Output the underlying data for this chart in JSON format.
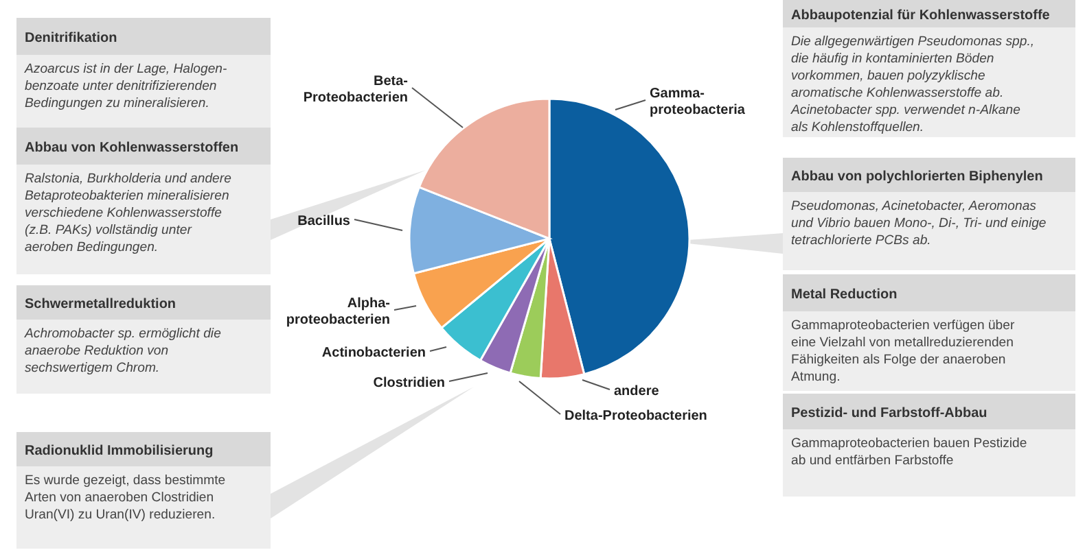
{
  "chart_data": {
    "type": "pie",
    "categories": [
      "Gamma-proteobacteria",
      "andere",
      "Delta-Proteobacterien",
      "Clostridien",
      "Actinobacterien",
      "Alpha-proteobacterien",
      "Bacillus",
      "Beta-Proteobacterien"
    ],
    "values": [
      46,
      5,
      3.5,
      3.7,
      5.8,
      7,
      10,
      19
    ],
    "colors": [
      "#0b5e9f",
      "#e8776b",
      "#9ccc5a",
      "#8e6bb4",
      "#3bbfd0",
      "#f9a24f",
      "#7fb0e0",
      "#ecae9e"
    ],
    "annotations": [
      "Denitrifikation",
      "Azoarcus ist in der Lage, Halogen-\nbenzoate unter denitrifizierenden\nBedingungen zu mineralisieren.",
      "Abbau von Kohlenwasserstoffen",
      "Ralstonia, Burkholderia und andere\nBetaproteobakterien mineralisieren\nverschiedene Kohlenwasserstoffe\n(z.B. PAKs) vollständig unter\naeroben Bedingungen.",
      "Schwermetallreduktion",
      "Achromobacter sp. ermöglicht die\nanaerobe Reduktion von\nsechswertigem Chrom.",
      "Radionuklid Immobilisierung",
      "Es wurde gezeigt, dass bestimmte\nArten von anaeroben Clostridien\nUran(VI) zu Uran(IV) reduzieren.",
      "Abbaupotenzial für Kohlenwasserstoffe",
      "Die allgegenwärtigen Pseudomonas spp.,\ndie häufig in kontaminierten Böden\nvorkommen, bauen polyzyklische\naromatische Kohlenwasserstoffe ab.\nAcinetobacter spp. verwendet n-Alkane\nals Kohlenstoffquellen.",
      "Abbau von polychlorierten Biphenylen",
      "Pseudomonas, Acinetobacter, Aeromonas\nund Vibrio bauen Mono-, Di-, Tri- und einige\ntetrachlorierte PCBs ab.",
      "Metal Reduction",
      "Gammaproteobacterien verfügen über\neine Vielzahl von metallreduzierenden\nFähigkeiten als Folge der anaeroben\nAtmung.",
      "Pestizid- und Farbstoff-Abbau",
      "Gammaproteobacterien bauen Pestizide\nab und entfärben Farbstoffe"
    ]
  }
}
